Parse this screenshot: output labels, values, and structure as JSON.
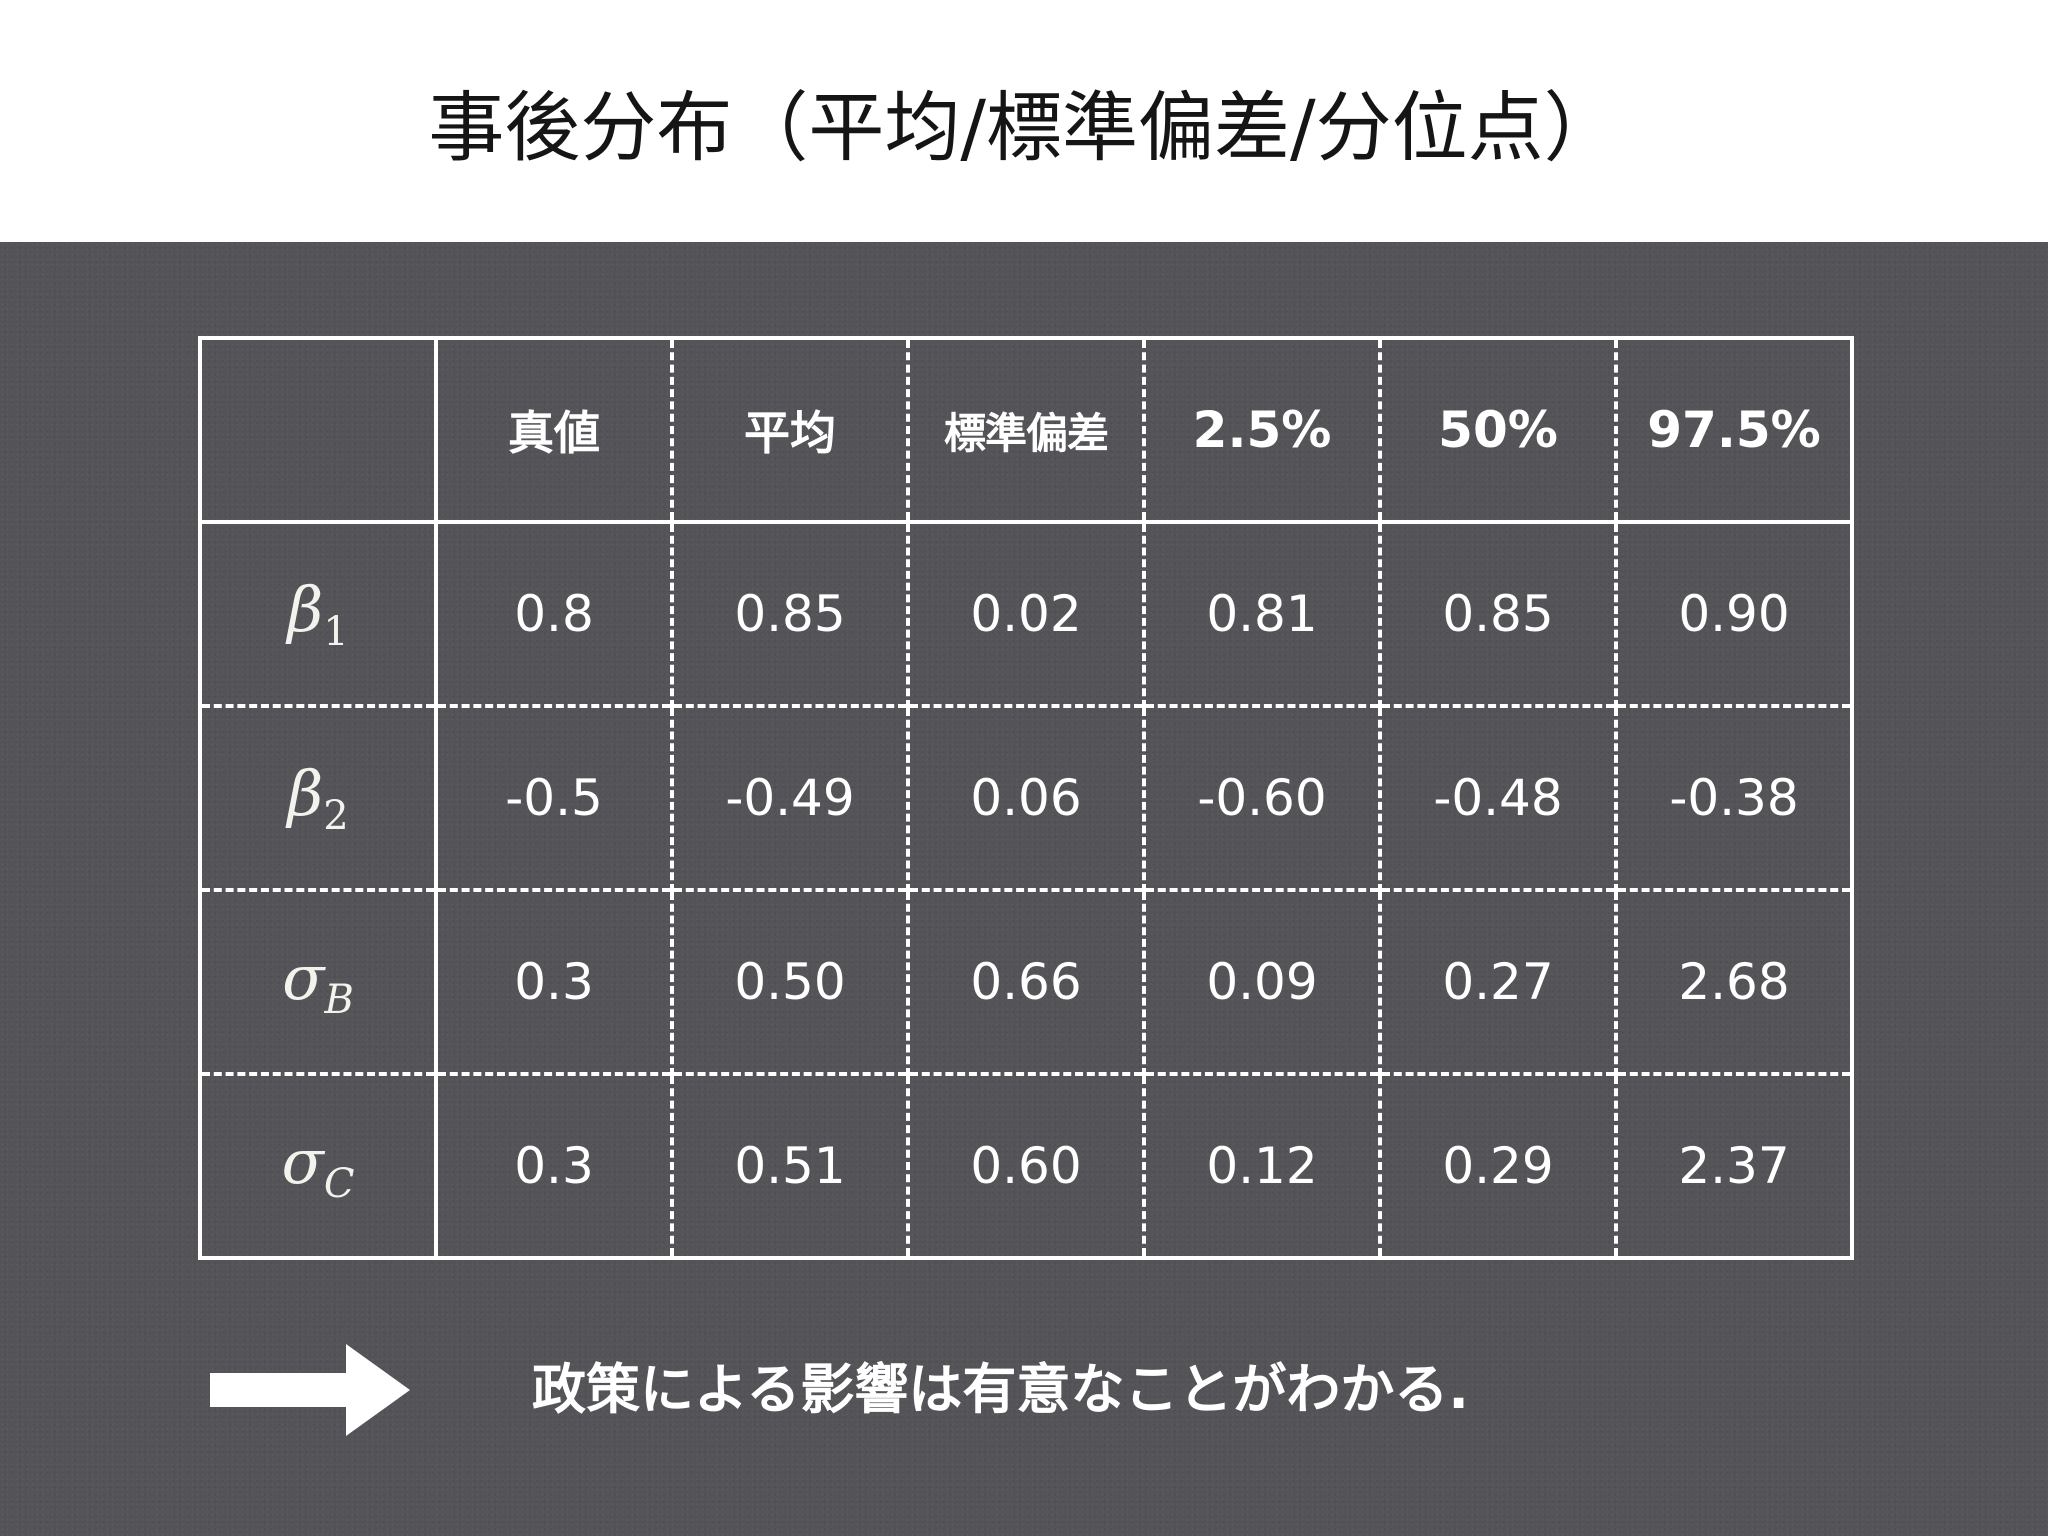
{
  "title": "事後分布（平均/標準偏差/分位点）",
  "table": {
    "headers": [
      "",
      "真値",
      "平均",
      "標準偏差",
      "2.5%",
      "50%",
      "97.5%"
    ],
    "rows": [
      {
        "symbol": "β",
        "subscript": "1",
        "cells": [
          "0.8",
          "0.85",
          "0.02",
          "0.81",
          "0.85",
          "0.90"
        ]
      },
      {
        "symbol": "β",
        "subscript": "2",
        "cells": [
          "-0.5",
          "-0.49",
          "0.06",
          "-0.60",
          "-0.48",
          "-0.38"
        ]
      },
      {
        "symbol": "σ",
        "subscript": "B",
        "cells": [
          "0.3",
          "0.50",
          "0.66",
          "0.09",
          "0.27",
          "2.68"
        ]
      },
      {
        "symbol": "σ",
        "subscript": "C",
        "cells": [
          "0.3",
          "0.51",
          "0.60",
          "0.12",
          "0.29",
          "2.37"
        ]
      }
    ]
  },
  "conclusion": "政策による影響は有意なことがわかる.",
  "colors": {
    "board": "#545357",
    "text": "#ffffff",
    "title_text": "#151515"
  },
  "icons": {
    "arrow": "right-arrow-icon"
  }
}
